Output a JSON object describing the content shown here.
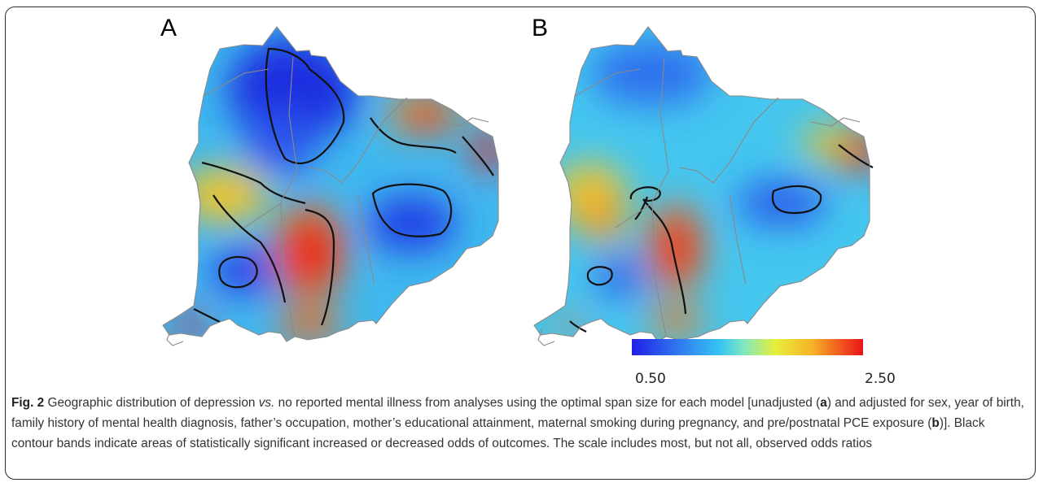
{
  "panels": [
    {
      "label": "A"
    },
    {
      "label": "B"
    }
  ],
  "color_scale": {
    "min_label": "0.50",
    "max_label": "2.50",
    "low_color": "#1f1fe6",
    "mid_color": "#37c4f2",
    "high_color": "#e8141a"
  },
  "caption": {
    "fig_label": "Fig. 2",
    "part1": " Geographic distribution of depression ",
    "vs": "vs.",
    "part2": " no reported mental illness from analyses using the optimal span size for each model [unadjusted (",
    "a": "a",
    "part3": ") and adjusted for sex, year of birth, family history of mental health diagnosis, father’s occupation, mother’s educational attainment, maternal smoking during pregnancy, and pre/postnatal PCE exposure (",
    "b": "b",
    "part4": ")]. Black contour bands indicate areas of statistically significant increased or decreased odds of outcomes. The scale includes most, but not all, observed odds ratios"
  }
}
